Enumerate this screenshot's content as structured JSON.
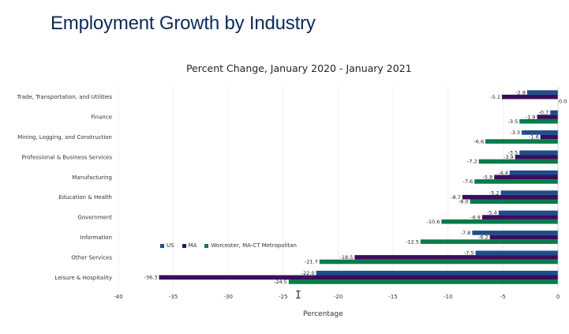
{
  "page": {
    "title": "Employment Growth by Industry"
  },
  "colors": {
    "US": "#1f4e8c",
    "MA": "#3b0d5e",
    "Worcester": "#0a7a4a"
  },
  "cursor_glyph": "I",
  "chart_data": {
    "type": "bar",
    "orientation": "horizontal",
    "title": "Percent Change, January 2020 - January 2021",
    "xlabel": "Percentage",
    "ylabel": "",
    "xlim": [
      -40,
      0
    ],
    "xticks": [
      "-40",
      "-35",
      "-30",
      "-25",
      "-20",
      "-15",
      "-10",
      "-5",
      "0"
    ],
    "categories": [
      "Trade, Transportation, and Utilities",
      "Finance",
      "Mining, Logging, and Construction",
      "Professional & Business Services",
      "Manufacturing",
      "Education & Health",
      "Government",
      "Information",
      "Other Services",
      "Leisure & Hospitality"
    ],
    "series": [
      {
        "name": "US",
        "values": [
          -2.8,
          -0.7,
          -3.3,
          -3.5,
          -4.4,
          -5.2,
          -5.4,
          -7.8,
          -7.5,
          -22.0
        ]
      },
      {
        "name": "MA",
        "values": [
          -5.1,
          -1.9,
          -1.6,
          -3.9,
          -5.8,
          -8.7,
          -6.9,
          -6.2,
          -18.5,
          -36.3
        ]
      },
      {
        "name": "Worcester, MA-CT Metropolitan",
        "values": [
          0.0,
          -3.5,
          -6.6,
          -7.2,
          -7.6,
          -8.0,
          -10.6,
          -12.5,
          -21.7,
          -24.5
        ]
      }
    ],
    "data_labels": [
      [
        "-2.8",
        "-5.1",
        "0.0"
      ],
      [
        "-0.7",
        "-1.9",
        "-3.5"
      ],
      [
        "-3.3",
        "-1.6",
        "-6.6"
      ],
      [
        "-3.5",
        "-3.9",
        "-7.2"
      ],
      [
        "-4.4",
        "-5.8",
        "-7.6"
      ],
      [
        "-5.2",
        "-8.7",
        "-8.0"
      ],
      [
        "-5.4",
        "-6.9",
        "-10.6"
      ],
      [
        "-7.8",
        "-6.2",
        "-12.5"
      ],
      [
        "-7.5",
        "-18.5",
        "-21.7"
      ],
      [
        "-22.0",
        "-36.3",
        "-24.5"
      ]
    ],
    "legend": {
      "placement": "inside-lower-left",
      "entries": [
        "US",
        "MA",
        "Worcester, MA-CT Metropolitan"
      ]
    },
    "grid": {
      "vertical": true,
      "horizontal": false
    }
  }
}
